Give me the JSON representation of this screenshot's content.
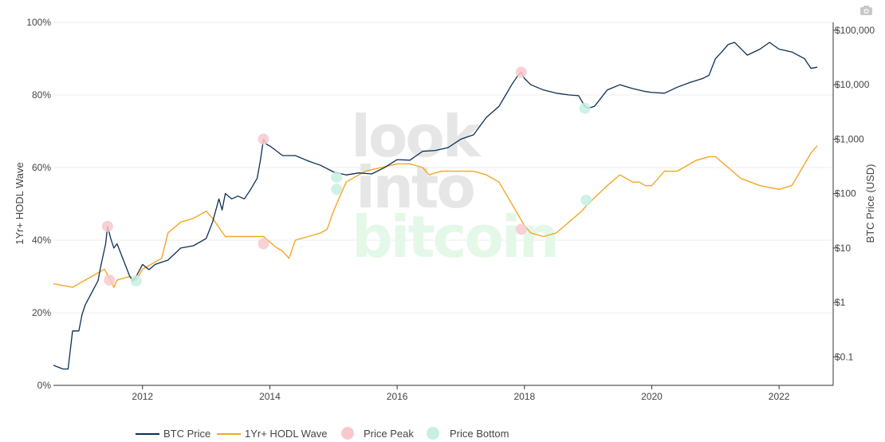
{
  "chart_data": {
    "type": "line",
    "title": "",
    "ylabel_left": "1Yr+ HODL Wave",
    "ylabel_right": "BTC Price (USD)",
    "left_axis": {
      "range": [
        0,
        100
      ],
      "ticks": [
        "0%",
        "20%",
        "40%",
        "60%",
        "80%",
        "100%"
      ]
    },
    "right_axis": {
      "scale": "log",
      "range": [
        0.03,
        140000
      ],
      "ticks": [
        "$0.1",
        "$1",
        "$10",
        "$100",
        "$1,000",
        "$10,000",
        "$100,000"
      ]
    },
    "x_axis": {
      "range": [
        2010.6,
        2022.85
      ],
      "ticks": [
        "2012",
        "2014",
        "2016",
        "2018",
        "2020",
        "2022"
      ]
    },
    "watermark": [
      "look",
      "into",
      "bitcoin"
    ],
    "colors": {
      "price": "#0b2f55",
      "hodl": "#f5a623",
      "peak": "#f7c9cf",
      "bottom": "#c7f0e3"
    },
    "series": [
      {
        "name": "BTC Price",
        "axis": "right",
        "x": [
          2010.6,
          2010.75,
          2010.83,
          2010.9,
          2011.0,
          2011.05,
          2011.1,
          2011.2,
          2011.3,
          2011.35,
          2011.42,
          2011.45,
          2011.5,
          2011.55,
          2011.6,
          2011.7,
          2011.8,
          2011.85,
          2011.9,
          2012.0,
          2012.1,
          2012.2,
          2012.4,
          2012.6,
          2012.8,
          2013.0,
          2013.1,
          2013.2,
          2013.25,
          2013.3,
          2013.4,
          2013.5,
          2013.6,
          2013.7,
          2013.8,
          2013.85,
          2013.9,
          2013.95,
          2014.0,
          2014.2,
          2014.4,
          2014.6,
          2014.8,
          2015.0,
          2015.2,
          2015.4,
          2015.6,
          2015.8,
          2016.0,
          2016.2,
          2016.4,
          2016.6,
          2016.8,
          2017.0,
          2017.2,
          2017.4,
          2017.6,
          2017.8,
          2017.9,
          2017.95,
          2018.0,
          2018.1,
          2018.3,
          2018.5,
          2018.7,
          2018.85,
          2018.95,
          2019.0,
          2019.1,
          2019.3,
          2019.5,
          2019.7,
          2019.9,
          2020.0,
          2020.2,
          2020.4,
          2020.6,
          2020.8,
          2020.9,
          2021.0,
          2021.1,
          2021.2,
          2021.3,
          2021.5,
          2021.7,
          2021.85,
          2022.0,
          2022.2,
          2022.4,
          2022.5,
          2022.6
        ],
        "y": [
          0.07,
          0.06,
          0.06,
          0.3,
          0.3,
          0.6,
          0.9,
          1.5,
          2.5,
          5,
          12,
          25,
          15,
          10,
          12,
          6,
          3,
          2.5,
          3,
          5,
          4,
          5,
          6,
          10,
          11,
          15,
          30,
          80,
          50,
          100,
          80,
          90,
          80,
          120,
          190,
          400,
          1000,
          800,
          750,
          500,
          500,
          400,
          330,
          250,
          220,
          240,
          230,
          300,
          420,
          410,
          600,
          620,
          700,
          1000,
          1200,
          2500,
          4000,
          10000,
          15000,
          17000,
          13000,
          10000,
          8000,
          7000,
          6500,
          6300,
          4000,
          3700,
          4000,
          8000,
          10000,
          8500,
          7500,
          7200,
          7000,
          9000,
          11000,
          13000,
          15000,
          30000,
          40000,
          55000,
          60000,
          35000,
          45000,
          60000,
          45000,
          40000,
          30000,
          20000,
          21000
        ]
      },
      {
        "name": "1Yr+ HODL Wave",
        "axis": "left",
        "x": [
          2010.6,
          2010.9,
          2011.0,
          2011.2,
          2011.4,
          2011.5,
          2011.55,
          2011.6,
          2011.8,
          2011.9,
          2012.0,
          2012.3,
          2012.4,
          2012.6,
          2012.8,
          2013.0,
          2013.1,
          2013.3,
          2013.5,
          2013.7,
          2013.9,
          2014.1,
          2014.2,
          2014.3,
          2014.4,
          2014.6,
          2014.8,
          2014.9,
          2015.0,
          2015.2,
          2015.5,
          2016.0,
          2016.2,
          2016.4,
          2016.5,
          2016.7,
          2016.9,
          2017.2,
          2017.4,
          2017.6,
          2017.7,
          2017.9,
          2018.0,
          2018.1,
          2018.3,
          2018.5,
          2018.7,
          2018.9,
          2019.0,
          2019.3,
          2019.5,
          2019.7,
          2019.8,
          2019.9,
          2020.0,
          2020.2,
          2020.4,
          2020.6,
          2020.7,
          2020.9,
          2021.0,
          2021.2,
          2021.4,
          2021.7,
          2022.0,
          2022.2,
          2022.3,
          2022.5,
          2022.6
        ],
        "y": [
          28,
          27,
          28,
          30,
          32,
          29,
          27,
          29,
          30,
          29,
          32,
          35,
          42,
          45,
          46,
          48,
          46,
          41,
          41,
          41,
          41,
          38,
          37,
          35,
          40,
          41,
          42,
          43,
          48,
          56,
          59,
          61,
          61,
          60,
          58,
          59,
          59,
          59,
          58,
          56,
          53,
          47,
          44,
          42,
          41,
          42,
          45,
          48,
          50,
          55,
          58,
          56,
          56,
          55,
          55,
          59,
          59,
          61,
          62,
          63,
          63,
          60,
          57,
          55,
          54,
          55,
          58,
          64,
          66
        ]
      }
    ],
    "markers": [
      {
        "name": "Price Peak",
        "points": [
          {
            "x": 2011.45,
            "y": 25
          },
          {
            "x": 2011.48,
            "y": 29
          },
          {
            "x": 2013.9,
            "y": 1000
          },
          {
            "x": 2013.9,
            "y": 39
          },
          {
            "x": 2017.95,
            "y": 17000
          },
          {
            "x": 2017.95,
            "y": 43
          }
        ]
      },
      {
        "name": "Price Bottom",
        "points": [
          {
            "x": 2011.9,
            "y": 2.5
          },
          {
            "x": 2015.05,
            "y": 200
          },
          {
            "x": 2015.05,
            "y": 54
          },
          {
            "x": 2018.95,
            "y": 3700
          },
          {
            "x": 2018.97,
            "y": 51
          }
        ]
      }
    ],
    "legend": {
      "placement": "bottom",
      "items": [
        "BTC Price",
        "1Yr+ HODL Wave",
        "Price Peak",
        "Price Bottom"
      ]
    },
    "grid": true
  }
}
